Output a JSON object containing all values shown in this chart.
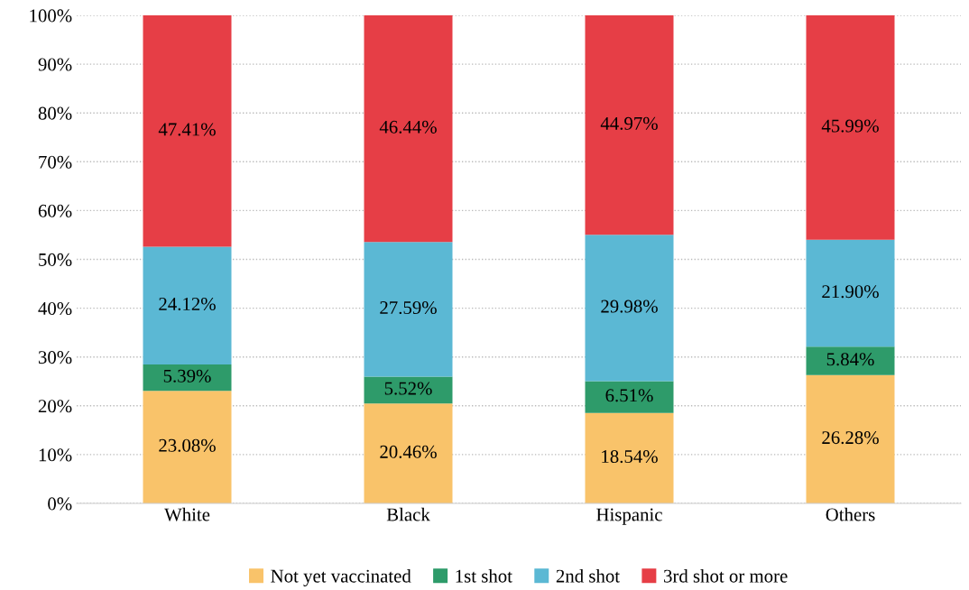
{
  "chart_data": {
    "type": "bar",
    "stacked": true,
    "categories": [
      "White",
      "Black",
      "Hispanic",
      "Others"
    ],
    "series": [
      {
        "name": "Not yet vaccinated",
        "color": "#f9c36a",
        "values": [
          23.08,
          20.46,
          18.54,
          26.28
        ],
        "value_labels": [
          "23.08%",
          "20.46%",
          "18.54%",
          "26.28%"
        ]
      },
      {
        "name": "1st shot",
        "color": "#2e9b6a",
        "values": [
          5.39,
          5.52,
          6.51,
          5.84
        ],
        "value_labels": [
          "5.39%",
          "5.52%",
          "6.51%",
          "5.84%"
        ]
      },
      {
        "name": "2nd shot",
        "color": "#5bb8d4",
        "values": [
          24.12,
          27.59,
          29.98,
          21.9
        ],
        "value_labels": [
          "24.12%",
          "27.59%",
          "29.98%",
          "21.90%"
        ]
      },
      {
        "name": "3rd shot or more",
        "color": "#e63e46",
        "values": [
          47.41,
          46.44,
          44.97,
          45.99
        ],
        "value_labels": [
          "47.41%",
          "46.44%",
          "44.97%",
          "45.99%"
        ]
      }
    ],
    "ylim": [
      0,
      100
    ],
    "yticks": [
      {
        "value": 0,
        "label": "0%"
      },
      {
        "value": 10,
        "label": "10%"
      },
      {
        "value": 20,
        "label": "20%"
      },
      {
        "value": 30,
        "label": "30%"
      },
      {
        "value": 40,
        "label": "40%"
      },
      {
        "value": 50,
        "label": "50%"
      },
      {
        "value": 60,
        "label": "60%"
      },
      {
        "value": 70,
        "label": "70%"
      },
      {
        "value": 80,
        "label": "80%"
      },
      {
        "value": 90,
        "label": "90%"
      },
      {
        "value": 100,
        "label": "100%"
      }
    ],
    "grid": "y",
    "legend": "bottom"
  }
}
